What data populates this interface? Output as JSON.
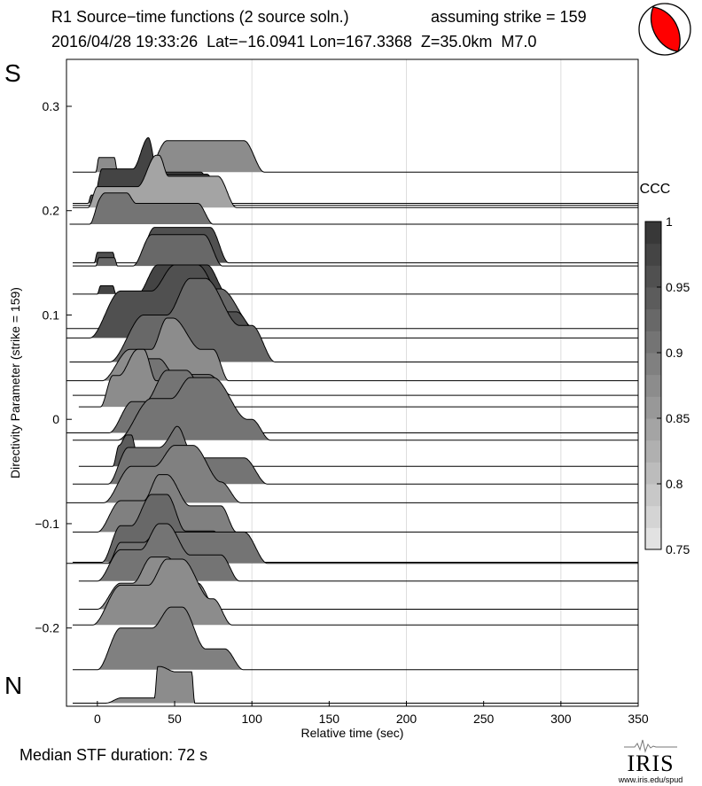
{
  "header": {
    "title_left": "R1 Source−time functions (2 source soln.)",
    "title_right": "assuming strike = 159",
    "subtitle": "2016/04/28 19:33:26  Lat=−16.0941 Lon=167.3368  Z=35.0km  M7.0"
  },
  "labels": {
    "south": "S",
    "north": "N"
  },
  "footer": {
    "median": "Median STF duration: 72 s"
  },
  "logo": {
    "name": "IRIS",
    "url": "www.iris.edu/spud"
  },
  "chart_data": {
    "type": "area",
    "title": "R1 Source−time functions (2 source soln.)",
    "xlabel": "Relative time (sec)",
    "ylabel": "Directivity Parameter (strike = 159)",
    "xlim": [
      -20,
      350
    ],
    "ylim": [
      -0.275,
      0.345
    ],
    "xticks": [
      0,
      50,
      100,
      150,
      200,
      250,
      300,
      350
    ],
    "xtick_labels": [
      "0",
      "50",
      "100",
      "150",
      "200",
      "250",
      "300",
      "350"
    ],
    "yticks": [
      0.3,
      0.2,
      0.1,
      0,
      -0.1,
      -0.2
    ],
    "ytick_labels": [
      "0.3",
      "0.2",
      "0.1",
      "0",
      "−0.1",
      "−0.2"
    ],
    "vertical_gridlines": [
      100,
      200,
      300
    ],
    "colorbar": {
      "label": "CCC",
      "range": [
        0.75,
        1
      ],
      "ticks": [
        0.75,
        0.8,
        0.85,
        0.9,
        0.95,
        1
      ],
      "tick_labels": [
        "0.75",
        "0.8",
        "0.85",
        "0.9",
        "0.95",
        "1"
      ],
      "levels": [
        "#e2e2e2",
        "#d4d4d4",
        "#c8c8c8",
        "#bcbcbc",
        "#b0b0b0",
        "#a4a4a4",
        "#989898",
        "#8c8c8c",
        "#808080",
        "#747474",
        "#686868",
        "#5c5c5c",
        "#505050",
        "#444444",
        "#383838"
      ]
    },
    "mechanism": {
      "type": "focal-mechanism",
      "fill": "#ff0000"
    },
    "series": [
      {
        "d": 0.237,
        "ccc": 0.88,
        "x_start": -16,
        "pulses": [
          [
            6,
            2,
            10,
            0.014
          ],
          [
            70,
            13,
            50,
            0.03
          ]
        ]
      },
      {
        "d": 0.207,
        "ccc": 0.96,
        "x_start": -16,
        "pulses": [
          [
            0,
            2,
            8,
            0.008
          ],
          [
            52,
            10,
            30,
            0.03
          ]
        ]
      },
      {
        "d": 0.205,
        "ccc": 0.97,
        "x_start": -16,
        "pulses": [
          [
            18,
            6,
            30,
            0.035
          ],
          [
            52,
            10,
            38,
            0.03
          ]
        ]
      },
      {
        "d": 0.203,
        "ccc": 0.85,
        "x_start": -16,
        "pulses": [
          [
            20,
            6,
            40,
            0.02
          ],
          [
            58,
            12,
            40,
            0.03
          ]
        ]
      },
      {
        "d": 0.187,
        "ccc": 0.91,
        "x_start": -18,
        "pulses": [
          [
            10,
            6,
            18,
            0.01
          ],
          [
            35,
            10,
            60,
            0.02
          ]
        ]
      },
      {
        "d": 0.15,
        "ccc": 0.96,
        "x_start": -16,
        "pulses": [
          [
            5,
            2,
            10,
            0.01
          ],
          [
            55,
            12,
            36,
            0.034
          ]
        ]
      },
      {
        "d": 0.147,
        "ccc": 0.93,
        "x_start": -16,
        "pulses": [
          [
            6,
            2,
            10,
            0.008
          ],
          [
            52,
            12,
            34,
            0.03
          ]
        ]
      },
      {
        "d": 0.12,
        "ccc": 0.97,
        "x_start": -16,
        "pulses": [
          [
            6,
            2,
            8,
            0.008
          ],
          [
            55,
            13,
            32,
            0.028
          ]
        ]
      },
      {
        "d": 0.087,
        "ccc": 0.93,
        "x_start": -20,
        "pulses": [
          [
            18,
            3,
            8,
            0.02
          ],
          [
            60,
            22,
            40,
            0.038
          ]
        ]
      },
      {
        "d": 0.078,
        "ccc": 0.96,
        "x_start": -20,
        "pulses": [
          [
            40,
            20,
            50,
            0.045
          ],
          [
            70,
            15,
            40,
            0.025
          ]
        ]
      },
      {
        "d": 0.055,
        "ccc": 0.93,
        "x_start": -18,
        "pulses": [
          [
            50,
            22,
            40,
            0.045
          ],
          [
            80,
            15,
            40,
            0.035
          ]
        ]
      },
      {
        "d": 0.037,
        "ccc": 0.88,
        "x_start": -20,
        "pulses": [
          [
            35,
            18,
            28,
            0.03
          ],
          [
            60,
            10,
            30,
            0.03
          ]
        ]
      },
      {
        "d": 0.023,
        "ccc": 0.91,
        "x_start": -16,
        "pulses": [
          [
            30,
            10,
            20,
            0.015
          ],
          [
            52,
            15,
            40,
            0.02
          ]
        ]
      },
      {
        "d": 0.012,
        "ccc": 0.88,
        "x_start": -12,
        "pulses": [
          [
            20,
            8,
            20,
            0.03
          ],
          [
            45,
            12,
            38,
            0.025
          ]
        ]
      },
      {
        "d": -0.013,
        "ccc": 0.91,
        "x_start": -20,
        "pulses": [
          [
            40,
            15,
            35,
            0.03
          ],
          [
            65,
            14,
            40,
            0.03
          ]
        ]
      },
      {
        "d": -0.02,
        "ccc": 0.9,
        "x_start": -16,
        "pulses": [
          [
            55,
            22,
            40,
            0.04
          ],
          [
            80,
            12,
            40,
            0.02
          ]
        ]
      },
      {
        "d": -0.045,
        "ccc": 0.94,
        "x_start": -12,
        "pulses": [
          [
            18,
            4,
            8,
            0.02
          ],
          [
            25,
            5,
            12,
            0.01
          ]
        ]
      },
      {
        "d": -0.062,
        "ccc": 0.91,
        "x_start": -16,
        "pulses": [
          [
            35,
            13,
            30,
            0.035
          ],
          [
            75,
            15,
            40,
            0.025
          ]
        ]
      },
      {
        "d": -0.08,
        "ccc": 0.89,
        "x_start": -20,
        "pulses": [
          [
            42,
            18,
            40,
            0.035
          ],
          [
            65,
            13,
            30,
            0.02
          ]
        ]
      },
      {
        "d": -0.108,
        "ccc": 0.89,
        "x_start": -16,
        "pulses": [
          [
            30,
            15,
            30,
            0.03
          ],
          [
            60,
            10,
            40,
            0.025
          ]
        ]
      },
      {
        "d": -0.137,
        "ccc": 0.93,
        "x_start": -16,
        "pulses": [
          [
            30,
            12,
            30,
            0.035
          ],
          [
            55,
            13,
            40,
            0.03
          ]
        ]
      },
      {
        "d": -0.138,
        "ccc": 0.91,
        "x_start": -20,
        "pulses": [
          [
            25,
            8,
            20,
            0.02
          ],
          [
            70,
            15,
            50,
            0.03
          ]
        ]
      },
      {
        "d": -0.155,
        "ccc": 0.9,
        "x_start": -12,
        "pulses": [
          [
            30,
            15,
            30,
            0.03
          ],
          [
            60,
            12,
            40,
            0.025
          ]
        ]
      },
      {
        "d": -0.182,
        "ccc": 0.88,
        "x_start": -12,
        "pulses": [
          [
            30,
            15,
            30,
            0.025
          ],
          [
            50,
            12,
            30,
            0.025
          ]
        ]
      },
      {
        "d": -0.197,
        "ccc": 0.87,
        "x_start": -16,
        "pulses": [
          [
            35,
            18,
            40,
            0.038
          ],
          [
            60,
            12,
            30,
            0.025
          ]
        ]
      },
      {
        "d": -0.24,
        "ccc": 0.89,
        "x_start": -16,
        "pulses": [
          [
            35,
            15,
            40,
            0.04
          ],
          [
            65,
            12,
            35,
            0.02
          ]
        ]
      },
      {
        "d": -0.272,
        "ccc": 0.88,
        "x_start": -16,
        "pulses": [
          [
            28,
            10,
            25,
            0.005
          ],
          [
            50,
            2,
            22,
            0.03
          ]
        ]
      }
    ]
  }
}
